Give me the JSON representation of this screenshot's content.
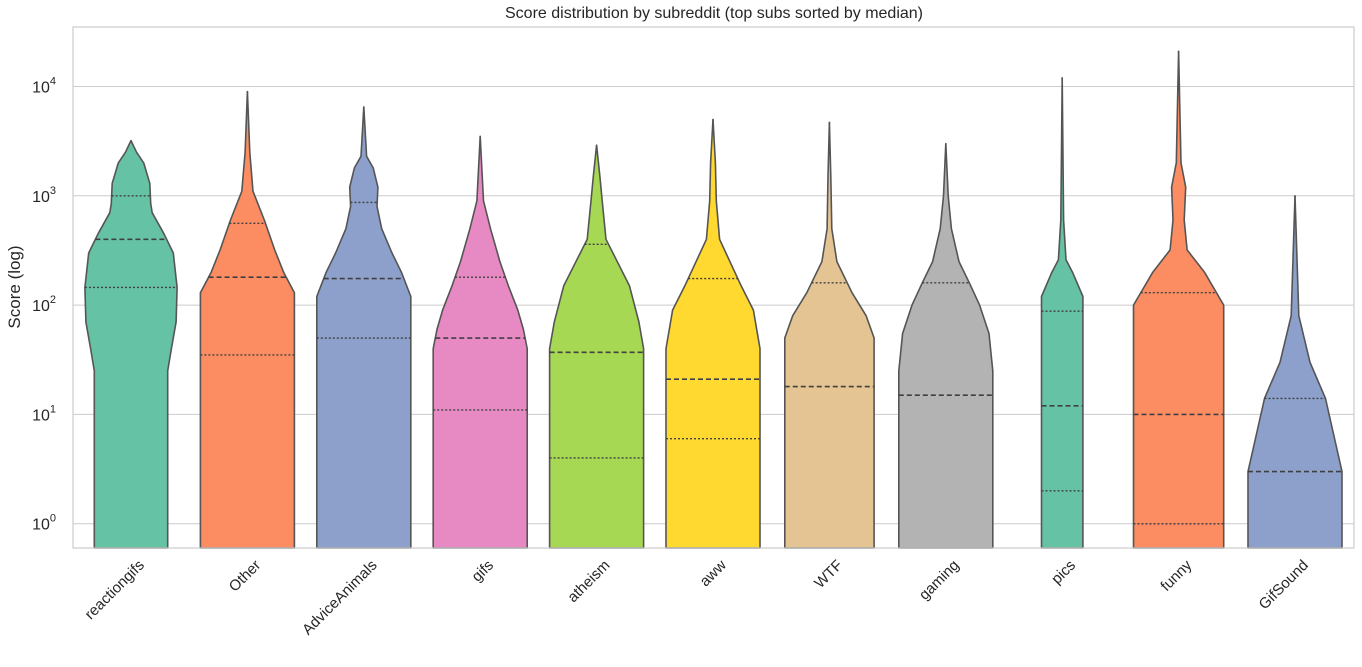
{
  "chart_data": {
    "type": "violin",
    "title": "Score distribution by subreddit (top subs sorted by median)",
    "xlabel": "",
    "ylabel": "Score (log)",
    "yscale": "log",
    "ylim": [
      0.6,
      35000
    ],
    "yticks": [
      {
        "value": 1,
        "base": "10",
        "exp": "0"
      },
      {
        "value": 10,
        "base": "10",
        "exp": "1"
      },
      {
        "value": 100,
        "base": "10",
        "exp": "2"
      },
      {
        "value": 1000,
        "base": "10",
        "exp": "3"
      },
      {
        "value": 10000,
        "base": "10",
        "exp": "4"
      }
    ],
    "grid": true,
    "legend": "none",
    "categories": [
      "reactiongifs",
      "Other",
      "AdviceAnimals",
      "gifs",
      "atheism",
      "aww",
      "WTF",
      "gaming",
      "pics",
      "funny",
      "GifSound"
    ],
    "series": [
      {
        "category": "reactiongifs",
        "color": "#66c2a5",
        "q1": 145,
        "median": 400,
        "q3": 1000,
        "max": 3200,
        "profile": [
          [
            0.6,
            0.78
          ],
          [
            25,
            0.78
          ],
          [
            40,
            0.86
          ],
          [
            70,
            0.96
          ],
          [
            145,
            0.98
          ],
          [
            300,
            0.9
          ],
          [
            450,
            0.7
          ],
          [
            700,
            0.45
          ],
          [
            850,
            0.42
          ],
          [
            1300,
            0.4
          ],
          [
            2000,
            0.27
          ],
          [
            2500,
            0.12
          ],
          [
            3200,
            0.0
          ]
        ]
      },
      {
        "category": "Other",
        "color": "#fc8d62",
        "q1": 35,
        "median": 180,
        "q3": 560,
        "max": 9000,
        "profile": [
          [
            0.6,
            1.0
          ],
          [
            130,
            1.0
          ],
          [
            200,
            0.77
          ],
          [
            320,
            0.58
          ],
          [
            600,
            0.36
          ],
          [
            1100,
            0.12
          ],
          [
            2500,
            0.05
          ],
          [
            9000,
            0.0
          ]
        ]
      },
      {
        "category": "AdviceAnimals",
        "color": "#8da0cb",
        "q1": 50,
        "median": 175,
        "q3": 870,
        "max": 6500,
        "profile": [
          [
            0.6,
            1.0
          ],
          [
            120,
            1.0
          ],
          [
            200,
            0.8
          ],
          [
            300,
            0.6
          ],
          [
            500,
            0.38
          ],
          [
            800,
            0.28
          ],
          [
            1200,
            0.3
          ],
          [
            1800,
            0.2
          ],
          [
            2300,
            0.06
          ],
          [
            6500,
            0.0
          ]
        ]
      },
      {
        "category": "gifs",
        "color": "#e78ac3",
        "q1": 11,
        "median": 50,
        "q3": 180,
        "max": 3500,
        "profile": [
          [
            0.6,
            1.0
          ],
          [
            40,
            1.0
          ],
          [
            60,
            0.92
          ],
          [
            90,
            0.8
          ],
          [
            150,
            0.6
          ],
          [
            250,
            0.42
          ],
          [
            500,
            0.22
          ],
          [
            900,
            0.07
          ],
          [
            3500,
            0.0
          ]
        ]
      },
      {
        "category": "atheism",
        "color": "#a6d854",
        "q1": 4,
        "median": 37,
        "q3": 360,
        "max": 2900,
        "profile": [
          [
            0.6,
            1.0
          ],
          [
            40,
            1.0
          ],
          [
            70,
            0.9
          ],
          [
            150,
            0.7
          ],
          [
            260,
            0.42
          ],
          [
            400,
            0.2
          ],
          [
            900,
            0.12
          ],
          [
            1500,
            0.07
          ],
          [
            2900,
            0.0
          ]
        ]
      },
      {
        "category": "aww",
        "color": "#ffd92f",
        "q1": 6,
        "median": 21,
        "q3": 175,
        "max": 5000,
        "profile": [
          [
            0.6,
            1.0
          ],
          [
            40,
            1.0
          ],
          [
            90,
            0.86
          ],
          [
            150,
            0.6
          ],
          [
            250,
            0.36
          ],
          [
            400,
            0.14
          ],
          [
            900,
            0.07
          ],
          [
            2000,
            0.05
          ],
          [
            5000,
            0.0
          ]
        ]
      },
      {
        "category": "WTF",
        "color": "#e5c494",
        "q1": 0.6,
        "median": 18,
        "q3": 160,
        "max": 4700,
        "profile": [
          [
            0.6,
            0.95
          ],
          [
            50,
            0.95
          ],
          [
            80,
            0.78
          ],
          [
            130,
            0.48
          ],
          [
            250,
            0.16
          ],
          [
            500,
            0.05
          ],
          [
            1500,
            0.03
          ],
          [
            4700,
            0.0
          ]
        ]
      },
      {
        "category": "gaming",
        "color": "#b3b3b3",
        "q1": 0.6,
        "median": 15,
        "q3": 160,
        "max": 3000,
        "profile": [
          [
            0.6,
            1.0
          ],
          [
            25,
            1.0
          ],
          [
            55,
            0.92
          ],
          [
            100,
            0.72
          ],
          [
            160,
            0.5
          ],
          [
            250,
            0.28
          ],
          [
            500,
            0.12
          ],
          [
            1000,
            0.05
          ],
          [
            3000,
            0.0
          ]
        ]
      },
      {
        "category": "pics",
        "color": "#66c2a5",
        "q1": 2,
        "median": 12,
        "q3": 88,
        "max": 12000,
        "profile": [
          [
            0.6,
            0.44
          ],
          [
            120,
            0.44
          ],
          [
            200,
            0.22
          ],
          [
            260,
            0.08
          ],
          [
            600,
            0.03
          ],
          [
            12000,
            0.0
          ]
        ]
      },
      {
        "category": "funny",
        "color": "#fc8d62",
        "q1": 1,
        "median": 10,
        "q3": 130,
        "max": 21000,
        "profile": [
          [
            0.6,
            0.96
          ],
          [
            100,
            0.96
          ],
          [
            200,
            0.55
          ],
          [
            320,
            0.18
          ],
          [
            600,
            0.12
          ],
          [
            1200,
            0.15
          ],
          [
            2000,
            0.05
          ],
          [
            21000,
            0.0
          ]
        ]
      },
      {
        "category": "GifSound",
        "color": "#8da0cb",
        "q1": 0.6,
        "median": 3,
        "q3": 14,
        "max": 1000,
        "profile": [
          [
            0.6,
            1.0
          ],
          [
            3,
            1.0
          ],
          [
            14,
            0.65
          ],
          [
            30,
            0.32
          ],
          [
            80,
            0.08
          ],
          [
            1000,
            0.0
          ]
        ]
      }
    ]
  }
}
